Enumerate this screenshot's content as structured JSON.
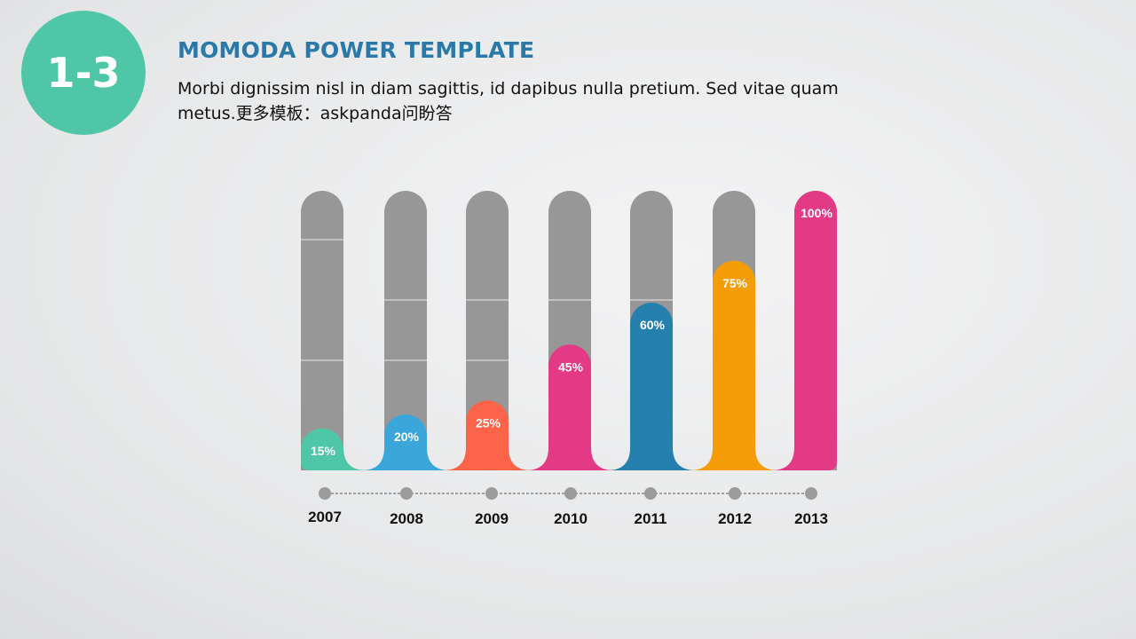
{
  "header": {
    "badge": "1-3",
    "title": "MOMODA POWER TEMPLATE",
    "subtitle": "Morbi dignissim nisl in diam sagittis, id dapibus nulla pretium. Sed vitae quam metus.更多模板：askpanda问盼答"
  },
  "chart_data": {
    "type": "bar",
    "categories": [
      "2007",
      "2008",
      "2009",
      "2010",
      "2011",
      "2012",
      "2013"
    ],
    "values": [
      15,
      20,
      25,
      45,
      60,
      75,
      100
    ],
    "value_labels": [
      "15%",
      "20%",
      "25%",
      "45%",
      "60%",
      "75%",
      "100%"
    ],
    "ylim": [
      0,
      100
    ],
    "colors": [
      "#4fc6a6",
      "#3ba6d9",
      "#fb6448",
      "#e23a85",
      "#2680ae",
      "#f59d09",
      "#e23a85"
    ],
    "track_color": "#979798"
  }
}
